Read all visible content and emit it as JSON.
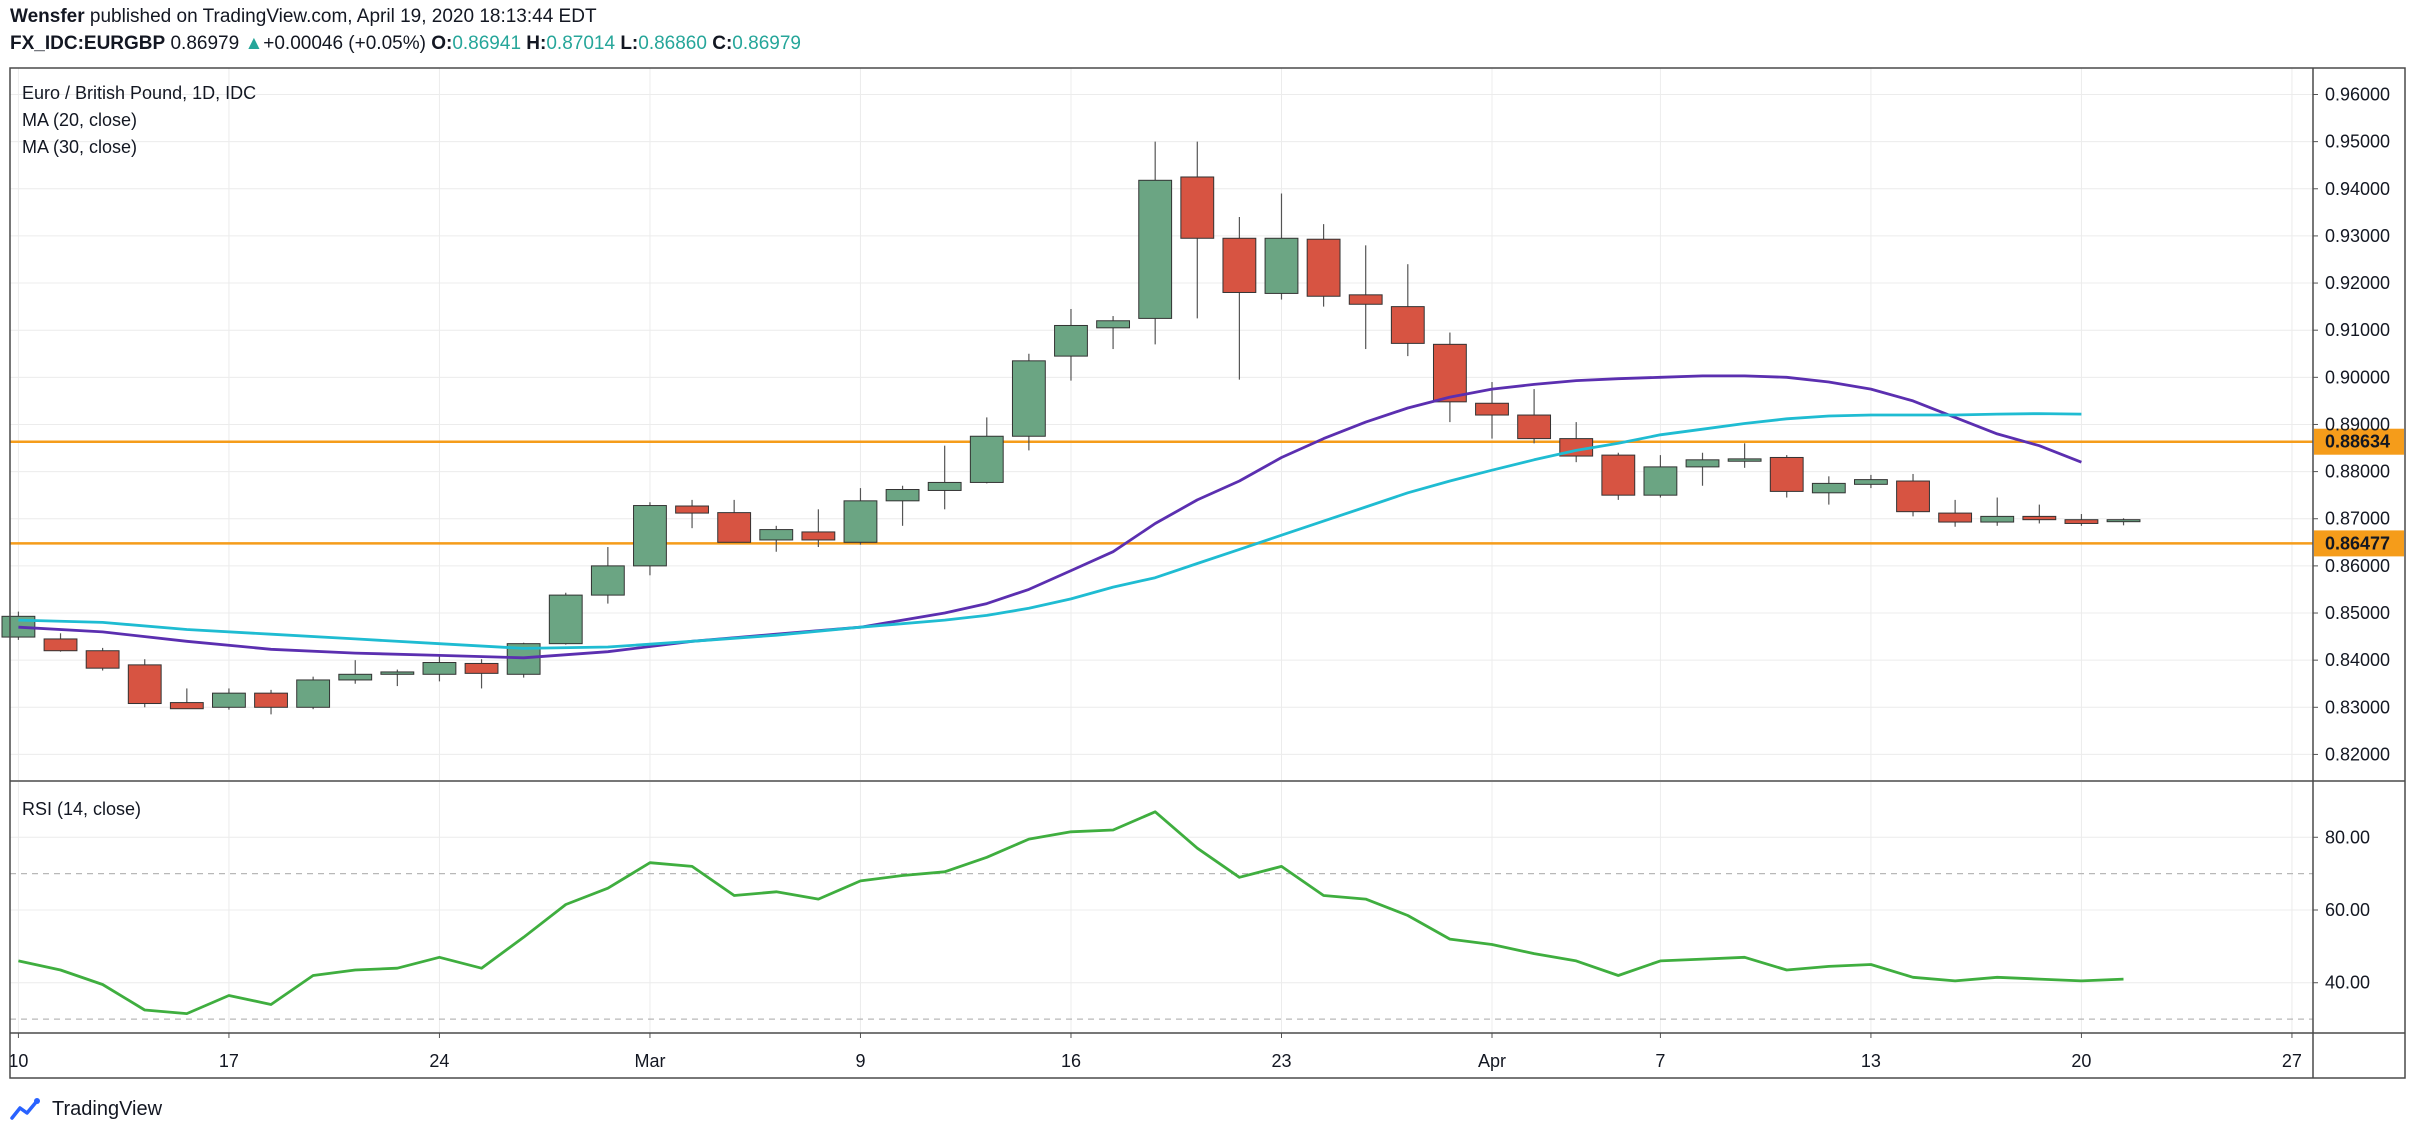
{
  "header": {
    "author": "Wensfer",
    "published_text": "published on TradingView.com, April 19, 2020 18:13:44 EDT",
    "symbol": "FX_IDC:EURGBP",
    "last": "0.86979",
    "change_arrow": "▲",
    "change": "+0.00046 (+0.05%)",
    "o_label": "O:",
    "o_value": "0.86941",
    "h_label": "H:",
    "h_value": "0.87014",
    "l_label": "L:",
    "l_value": "0.86860",
    "c_label": "C:",
    "c_value": "0.86979"
  },
  "legend": {
    "title": "Euro / British Pound, 1D, IDC",
    "ma20": "MA (20, close)",
    "ma30": "MA (30, close)",
    "rsi": "RSI (14, close)"
  },
  "footer": {
    "brand": "TradingView",
    "logo_icon": "tradingview-logo-icon"
  },
  "colors": {
    "up": "#6ba583",
    "down": "#d75442",
    "ma20": "#5b2fb0",
    "ma30": "#1fbcd2",
    "rsi": "#3fae3f",
    "hline": "#f59c1a",
    "grid": "#ececec",
    "text": "#131722"
  },
  "chart_data": [
    {
      "type": "candlestick",
      "title": "Euro / British Pound, 1D, IDC",
      "x_ticks": [
        {
          "i": 0,
          "label": "10"
        },
        {
          "i": 5,
          "label": "17"
        },
        {
          "i": 10,
          "label": "24"
        },
        {
          "i": 15,
          "label": "Mar"
        },
        {
          "i": 20,
          "label": "9"
        },
        {
          "i": 25,
          "label": "16"
        },
        {
          "i": 30,
          "label": "23"
        },
        {
          "i": 35,
          "label": "Apr"
        },
        {
          "i": 39,
          "label": "7"
        },
        {
          "i": 44,
          "label": "13"
        },
        {
          "i": 49,
          "label": "20"
        },
        {
          "i": 54,
          "label": "27"
        }
      ],
      "x_index_range": [
        -0.2,
        54.5
      ],
      "ylim": [
        0.815,
        0.9635
      ],
      "y_ticks": [
        "0.82000",
        "0.83000",
        "0.84000",
        "0.85000",
        "0.86000",
        "0.87000",
        "0.88000",
        "0.89000",
        "0.90000",
        "0.91000",
        "0.92000",
        "0.93000",
        "0.94000",
        "0.95000",
        "0.96000"
      ],
      "candles": [
        {
          "o": 0.8449,
          "h": 0.8503,
          "l": 0.8443,
          "c": 0.8493
        },
        {
          "o": 0.8445,
          "h": 0.8457,
          "l": 0.8418,
          "c": 0.842
        },
        {
          "o": 0.842,
          "h": 0.8426,
          "l": 0.8378,
          "c": 0.8383
        },
        {
          "o": 0.839,
          "h": 0.8402,
          "l": 0.83,
          "c": 0.8308
        },
        {
          "o": 0.831,
          "h": 0.834,
          "l": 0.8298,
          "c": 0.8297
        },
        {
          "o": 0.83,
          "h": 0.834,
          "l": 0.8295,
          "c": 0.833
        },
        {
          "o": 0.833,
          "h": 0.8337,
          "l": 0.8285,
          "c": 0.83
        },
        {
          "o": 0.83,
          "h": 0.8365,
          "l": 0.8296,
          "c": 0.8358
        },
        {
          "o": 0.8358,
          "h": 0.84,
          "l": 0.835,
          "c": 0.837
        },
        {
          "o": 0.837,
          "h": 0.838,
          "l": 0.8345,
          "c": 0.8375
        },
        {
          "o": 0.837,
          "h": 0.8408,
          "l": 0.8355,
          "c": 0.8395
        },
        {
          "o": 0.8393,
          "h": 0.8402,
          "l": 0.834,
          "c": 0.8372
        },
        {
          "o": 0.837,
          "h": 0.8437,
          "l": 0.8363,
          "c": 0.8435
        },
        {
          "o": 0.8435,
          "h": 0.8543,
          "l": 0.8433,
          "c": 0.8538
        },
        {
          "o": 0.8538,
          "h": 0.864,
          "l": 0.852,
          "c": 0.86
        },
        {
          "o": 0.86,
          "h": 0.8735,
          "l": 0.858,
          "c": 0.8728
        },
        {
          "o": 0.8727,
          "h": 0.874,
          "l": 0.868,
          "c": 0.8712
        },
        {
          "o": 0.8713,
          "h": 0.874,
          "l": 0.865,
          "c": 0.865
        },
        {
          "o": 0.8655,
          "h": 0.8685,
          "l": 0.863,
          "c": 0.8677
        },
        {
          "o": 0.8672,
          "h": 0.872,
          "l": 0.864,
          "c": 0.8655
        },
        {
          "o": 0.865,
          "h": 0.8765,
          "l": 0.8645,
          "c": 0.8738
        },
        {
          "o": 0.8738,
          "h": 0.877,
          "l": 0.8685,
          "c": 0.8762
        },
        {
          "o": 0.876,
          "h": 0.8855,
          "l": 0.872,
          "c": 0.8777
        },
        {
          "o": 0.8777,
          "h": 0.8915,
          "l": 0.8775,
          "c": 0.8875
        },
        {
          "o": 0.8875,
          "h": 0.905,
          "l": 0.8845,
          "c": 0.9035
        },
        {
          "o": 0.9045,
          "h": 0.9145,
          "l": 0.8993,
          "c": 0.911
        },
        {
          "o": 0.9105,
          "h": 0.913,
          "l": 0.906,
          "c": 0.912
        },
        {
          "o": 0.9125,
          "h": 0.95,
          "l": 0.907,
          "c": 0.9418
        },
        {
          "o": 0.9425,
          "h": 0.95,
          "l": 0.9125,
          "c": 0.9295
        },
        {
          "o": 0.9295,
          "h": 0.934,
          "l": 0.8995,
          "c": 0.918
        },
        {
          "o": 0.9178,
          "h": 0.939,
          "l": 0.9165,
          "c": 0.9295
        },
        {
          "o": 0.9293,
          "h": 0.9325,
          "l": 0.915,
          "c": 0.9172
        },
        {
          "o": 0.9175,
          "h": 0.928,
          "l": 0.906,
          "c": 0.9155
        },
        {
          "o": 0.915,
          "h": 0.924,
          "l": 0.9045,
          "c": 0.9072
        },
        {
          "o": 0.907,
          "h": 0.9095,
          "l": 0.8905,
          "c": 0.8948
        },
        {
          "o": 0.8945,
          "h": 0.899,
          "l": 0.887,
          "c": 0.892
        },
        {
          "o": 0.892,
          "h": 0.8975,
          "l": 0.886,
          "c": 0.887
        },
        {
          "o": 0.887,
          "h": 0.8905,
          "l": 0.882,
          "c": 0.8833
        },
        {
          "o": 0.8835,
          "h": 0.884,
          "l": 0.874,
          "c": 0.875
        },
        {
          "o": 0.875,
          "h": 0.8835,
          "l": 0.8745,
          "c": 0.881
        },
        {
          "o": 0.881,
          "h": 0.884,
          "l": 0.877,
          "c": 0.8825
        },
        {
          "o": 0.8822,
          "h": 0.886,
          "l": 0.8808,
          "c": 0.8827
        },
        {
          "o": 0.883,
          "h": 0.8835,
          "l": 0.8745,
          "c": 0.8758
        },
        {
          "o": 0.8755,
          "h": 0.879,
          "l": 0.873,
          "c": 0.8775
        },
        {
          "o": 0.8773,
          "h": 0.8793,
          "l": 0.8765,
          "c": 0.8783
        },
        {
          "o": 0.878,
          "h": 0.8795,
          "l": 0.8705,
          "c": 0.8715
        },
        {
          "o": 0.8712,
          "h": 0.874,
          "l": 0.8683,
          "c": 0.8693
        },
        {
          "o": 0.8693,
          "h": 0.8745,
          "l": 0.8685,
          "c": 0.8705
        },
        {
          "o": 0.8705,
          "h": 0.873,
          "l": 0.869,
          "c": 0.8698
        },
        {
          "o": 0.8698,
          "h": 0.871,
          "l": 0.8685,
          "c": 0.869
        },
        {
          "o": 0.8694,
          "h": 0.8701,
          "l": 0.8686,
          "c": 0.8698
        }
      ],
      "series": [
        {
          "name": "MA (20, close)",
          "color": "#5b2fb0",
          "points": [
            [
              0,
              0.847
            ],
            [
              2,
              0.846
            ],
            [
              4,
              0.844
            ],
            [
              6,
              0.8423
            ],
            [
              8,
              0.8415
            ],
            [
              10,
              0.841
            ],
            [
              12,
              0.8405
            ],
            [
              14,
              0.8418
            ],
            [
              16,
              0.844
            ],
            [
              18,
              0.8455
            ],
            [
              20,
              0.847
            ],
            [
              22,
              0.85
            ],
            [
              23,
              0.852
            ],
            [
              24,
              0.855
            ],
            [
              25,
              0.859
            ],
            [
              26,
              0.863
            ],
            [
              27,
              0.869
            ],
            [
              28,
              0.874
            ],
            [
              29,
              0.878
            ],
            [
              30,
              0.883
            ],
            [
              31,
              0.887
            ],
            [
              32,
              0.8905
            ],
            [
              33,
              0.8935
            ],
            [
              34,
              0.8958
            ],
            [
              35,
              0.8975
            ],
            [
              36,
              0.8985
            ],
            [
              37,
              0.8993
            ],
            [
              38,
              0.8997
            ],
            [
              39,
              0.9
            ],
            [
              40,
              0.9003
            ],
            [
              41,
              0.9003
            ],
            [
              42,
              0.9
            ],
            [
              43,
              0.899
            ],
            [
              44,
              0.8975
            ],
            [
              45,
              0.895
            ],
            [
              46,
              0.8915
            ],
            [
              47,
              0.888
            ],
            [
              48,
              0.8855
            ],
            [
              49,
              0.882
            ]
          ]
        },
        {
          "name": "MA (30, close)",
          "color": "#1fbcd2",
          "points": [
            [
              0,
              0.8485
            ],
            [
              2,
              0.848
            ],
            [
              4,
              0.8465
            ],
            [
              6,
              0.8455
            ],
            [
              8,
              0.8445
            ],
            [
              10,
              0.8435
            ],
            [
              12,
              0.8425
            ],
            [
              14,
              0.8428
            ],
            [
              16,
              0.844
            ],
            [
              18,
              0.8453
            ],
            [
              20,
              0.847
            ],
            [
              22,
              0.8485
            ],
            [
              23,
              0.8495
            ],
            [
              24,
              0.851
            ],
            [
              25,
              0.853
            ],
            [
              26,
              0.8555
            ],
            [
              27,
              0.8575
            ],
            [
              28,
              0.8605
            ],
            [
              29,
              0.8635
            ],
            [
              30,
              0.8665
            ],
            [
              31,
              0.8695
            ],
            [
              32,
              0.8725
            ],
            [
              33,
              0.8755
            ],
            [
              34,
              0.878
            ],
            [
              35,
              0.8803
            ],
            [
              36,
              0.8825
            ],
            [
              37,
              0.8845
            ],
            [
              38,
              0.886
            ],
            [
              39,
              0.8878
            ],
            [
              40,
              0.889
            ],
            [
              41,
              0.8902
            ],
            [
              42,
              0.8912
            ],
            [
              43,
              0.8918
            ],
            [
              44,
              0.892
            ],
            [
              45,
              0.892
            ],
            [
              46,
              0.892
            ],
            [
              47,
              0.8922
            ],
            [
              48,
              0.8923
            ],
            [
              49,
              0.8922
            ]
          ]
        }
      ],
      "hlines": [
        {
          "value": 0.88634,
          "label": "0.88634",
          "color": "#f59c1a"
        },
        {
          "value": 0.86477,
          "label": "0.86477",
          "color": "#f59c1a"
        }
      ]
    },
    {
      "type": "line",
      "title": "RSI (14, close)",
      "ylim": [
        27,
        93
      ],
      "y_ticks": [
        "40.00",
        "60.00",
        "80.00"
      ],
      "bands": [
        70,
        30
      ],
      "series": [
        {
          "name": "RSI (14, close)",
          "color": "#3fae3f",
          "values": [
            46.0,
            43.5,
            39.5,
            32.5,
            31.5,
            36.5,
            34.0,
            42.0,
            43.5,
            44.0,
            47.0,
            44.0,
            52.5,
            61.5,
            66.0,
            73.0,
            72.0,
            64.0,
            65.0,
            63.0,
            68.0,
            69.5,
            70.5,
            74.5,
            79.5,
            81.5,
            82.0,
            87.0,
            77.0,
            69.0,
            72.0,
            64.0,
            63.0,
            58.5,
            52.0,
            50.5,
            48.0,
            46.0,
            42.0,
            46.0,
            46.5,
            47.0,
            43.5,
            44.5,
            45.0,
            41.5,
            40.5,
            41.5,
            41.0,
            40.5,
            41.0
          ]
        }
      ]
    }
  ]
}
